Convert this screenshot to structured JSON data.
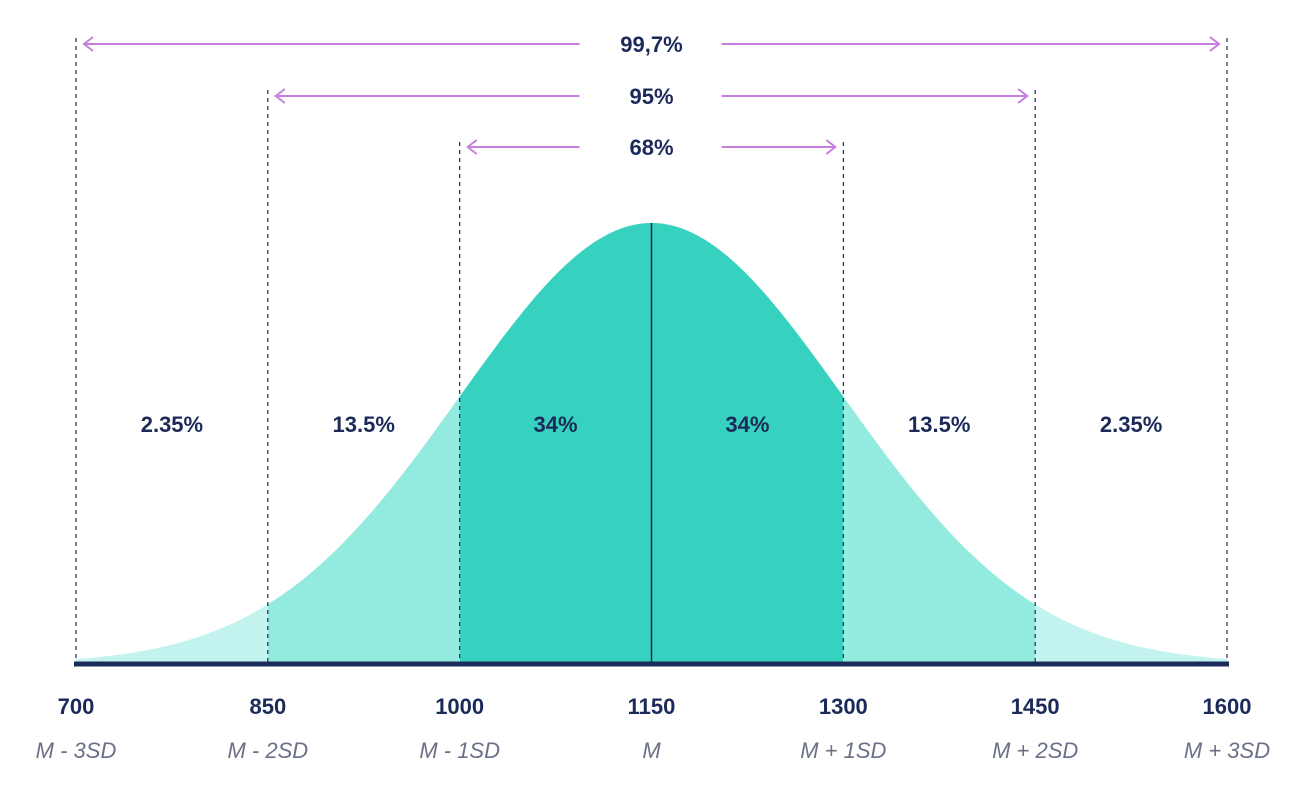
{
  "chart_data": {
    "type": "area",
    "distribution": "normal",
    "mean": 1150,
    "sd": 150,
    "x_ticks": [
      {
        "value": "700",
        "label": "M - 3SD"
      },
      {
        "value": "850",
        "label": "M - 2SD"
      },
      {
        "value": "1000",
        "label": "M - 1SD"
      },
      {
        "value": "1150",
        "label": "M"
      },
      {
        "value": "1300",
        "label": "M + 1SD"
      },
      {
        "value": "1450",
        "label": "M + 2SD"
      },
      {
        "value": "1600",
        "label": "M + 3SD"
      }
    ],
    "bands": [
      {
        "from": 700,
        "to": 850,
        "label": "2.35%"
      },
      {
        "from": 850,
        "to": 1000,
        "label": "13.5%"
      },
      {
        "from": 1000,
        "to": 1150,
        "label": "34%"
      },
      {
        "from": 1150,
        "to": 1300,
        "label": "34%"
      },
      {
        "from": 1300,
        "to": 1450,
        "label": "13.5%"
      },
      {
        "from": 1450,
        "to": 1600,
        "label": "2.35%"
      }
    ],
    "ranges": [
      {
        "from": 700,
        "to": 1600,
        "label": "99,7%"
      },
      {
        "from": 850,
        "to": 1450,
        "label": "95%"
      },
      {
        "from": 1000,
        "to": 1300,
        "label": "68%"
      }
    ],
    "xlim": [
      700,
      1600
    ],
    "colors": {
      "inner": "#36d1bf",
      "middle": "#93ebe0",
      "outer": "#c3f3ee",
      "axis": "#1c2a5a",
      "arrow": "#c77fdd",
      "dashed": "#1c2a5a"
    }
  }
}
